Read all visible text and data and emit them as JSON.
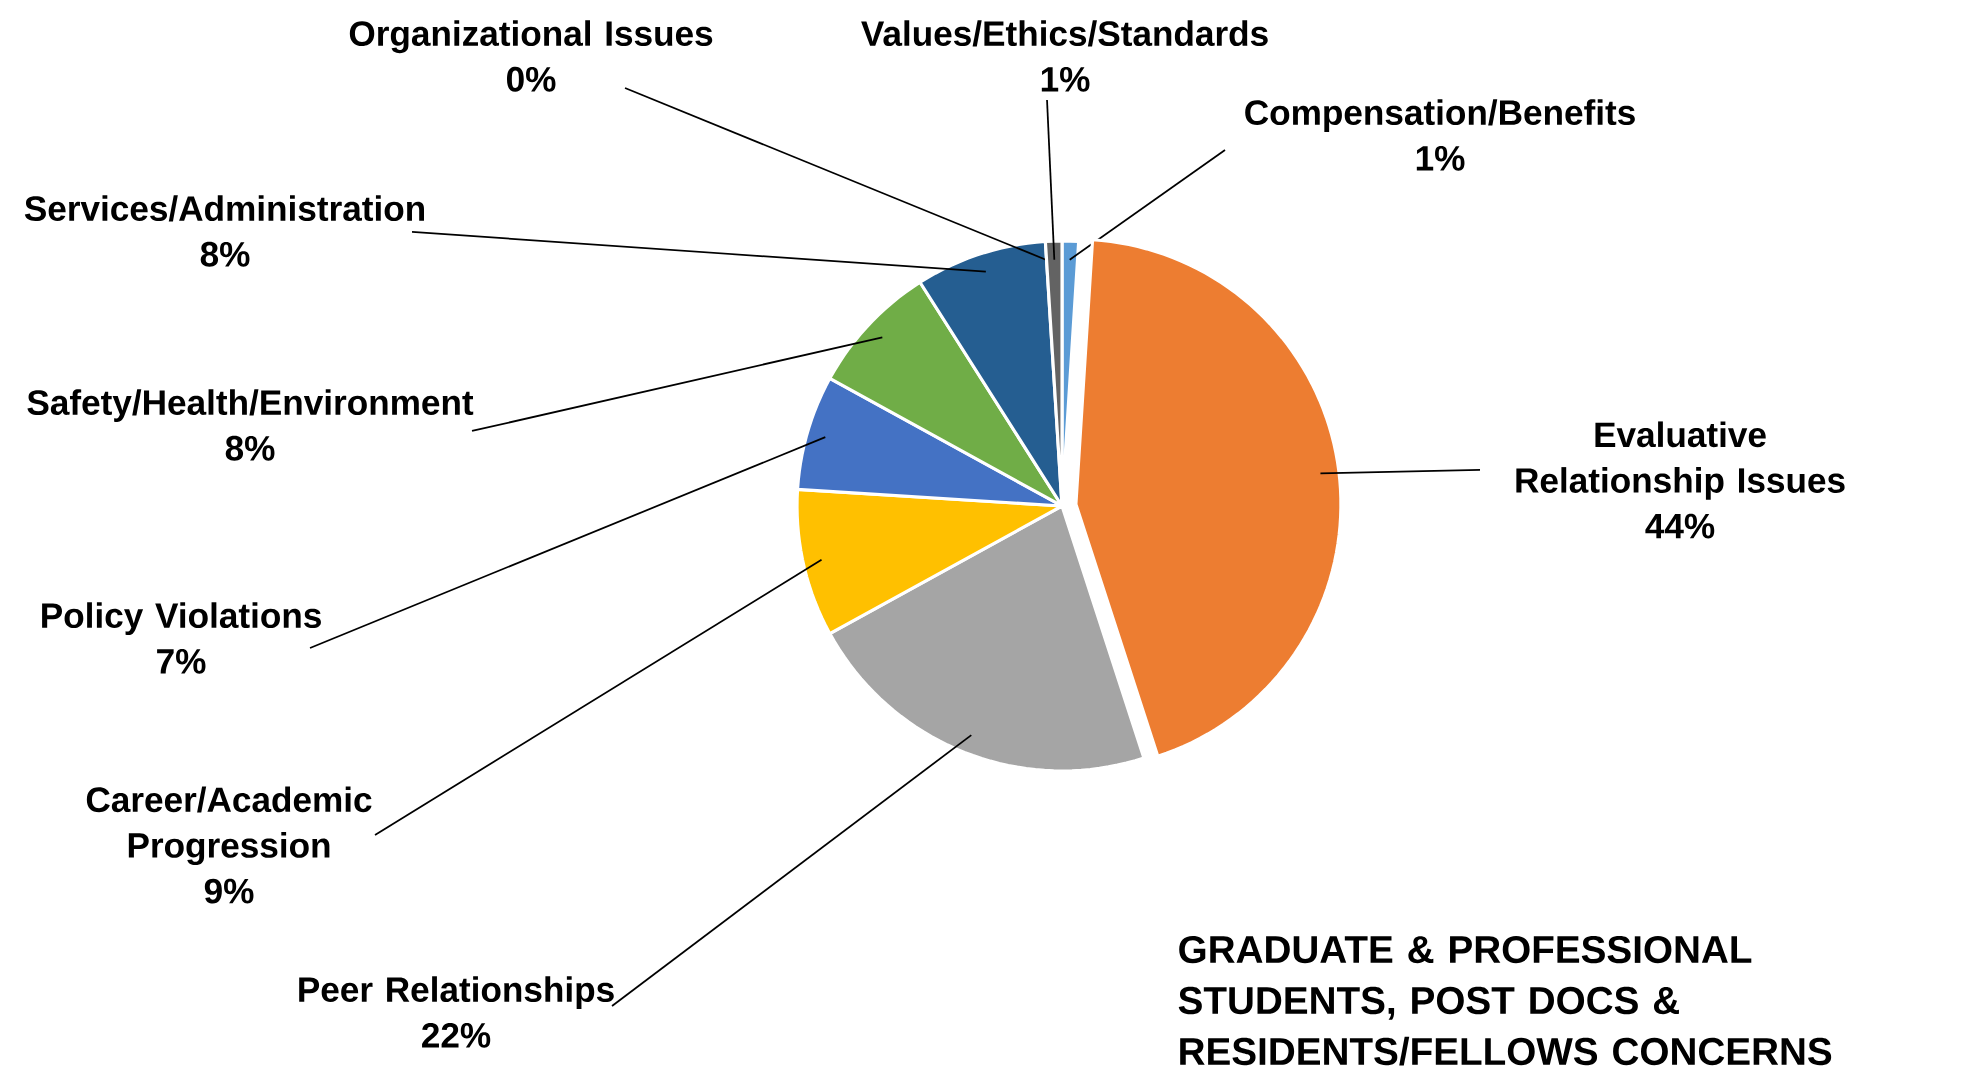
{
  "chart_data": {
    "type": "pie",
    "title": "GRADUATE & PROFESSIONAL STUDENTS, POST DOCS & RESIDENTS/FELLOWS CONCERNS",
    "categories": [
      "Compensation/Benefits",
      "Evaluative Relationship Issues",
      "Peer Relationships",
      "Career/Academic Progression",
      "Policy Violations",
      "Safety/Health/Environment",
      "Services/Administration",
      "Organizational Issues",
      "Values/Ethics/Standards"
    ],
    "values": [
      1,
      44,
      22,
      9,
      7,
      8,
      8,
      0,
      1
    ],
    "value_labels": [
      "1%",
      "44%",
      "22%",
      "9%",
      "7%",
      "8%",
      "8%",
      "0%",
      "1%"
    ],
    "colors": [
      "#5b9bd5",
      "#ed7d31",
      "#a5a5a5",
      "#ffc000",
      "#4472c4",
      "#70ad47",
      "#255e91",
      "#9e480e",
      "#636363"
    ]
  }
}
